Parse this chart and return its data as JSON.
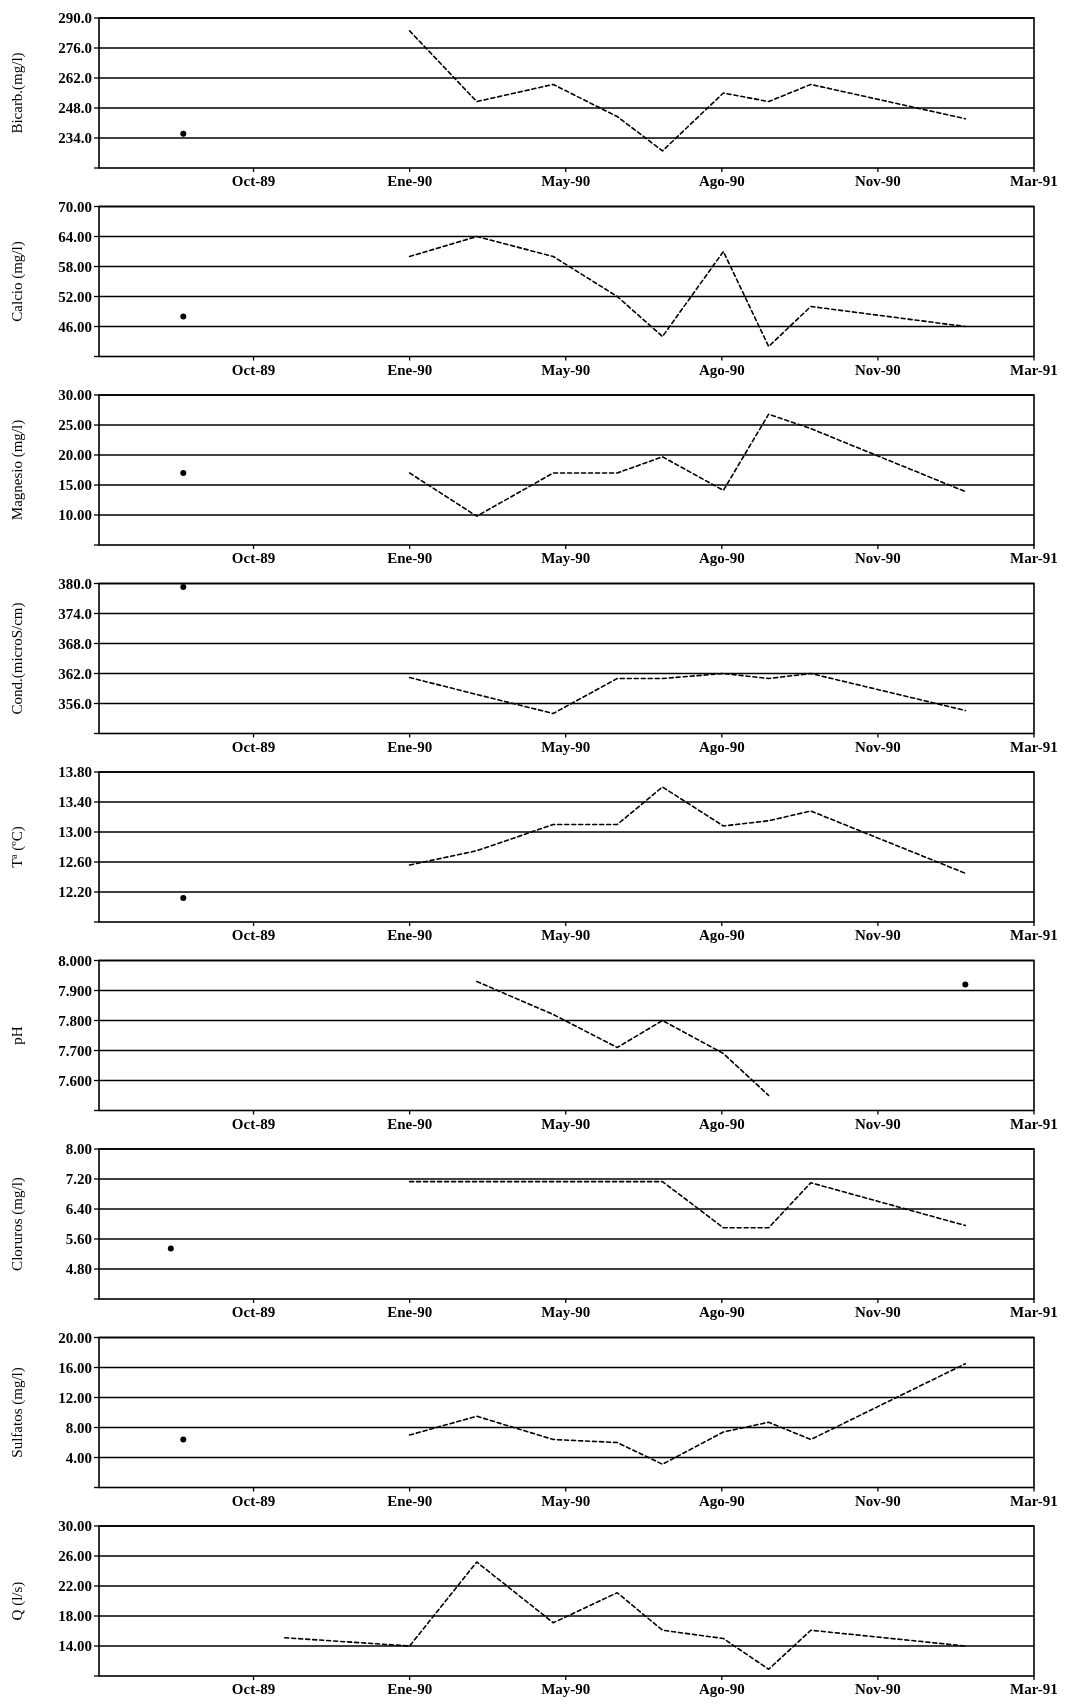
{
  "chart_data": [
    {
      "type": "line",
      "ylabel": "Bicarb.(mg/l)",
      "xlim": [
        "1989-07-13",
        "1991-03-04"
      ],
      "xticks": [
        {
          "value": "1989-10-20",
          "label": "Oct-89"
        },
        {
          "value": "1990-01-28",
          "label": "Ene-90"
        },
        {
          "value": "1990-05-08",
          "label": "May-90"
        },
        {
          "value": "1990-08-16",
          "label": "Ago-90"
        },
        {
          "value": "1990-11-24",
          "label": "Nov-90"
        },
        {
          "value": "1991-03-04",
          "label": "Mar-91"
        }
      ],
      "ylim": [
        220,
        290
      ],
      "yticks": [
        {
          "value": 234,
          "label": "234.0"
        },
        {
          "value": 248,
          "label": "248.0"
        },
        {
          "value": 262,
          "label": "262.0"
        },
        {
          "value": 276,
          "label": "276.0"
        },
        {
          "value": 290,
          "label": "290.0"
        }
      ],
      "grid": "y",
      "line_style": "dashed",
      "series": [
        {
          "type": "scatter",
          "color": "#000000",
          "x": [
            "1989-09-05"
          ],
          "values": [
            236
          ]
        },
        {
          "color": "#000000",
          "x": [
            "1990-01-28",
            "1990-03-12",
            "1990-04-30",
            "1990-06-10",
            "1990-07-09",
            "1990-08-17",
            "1990-09-15",
            "1990-10-12",
            "1991-01-19"
          ],
          "values": [
            284,
            251,
            259,
            244,
            228,
            255,
            251,
            259,
            243
          ]
        }
      ]
    },
    {
      "type": "line",
      "ylabel": "Calcio (mg/l)",
      "xlim": [
        "1989-07-13",
        "1991-03-04"
      ],
      "xticks": [
        {
          "value": "1989-10-20",
          "label": "Oct-89"
        },
        {
          "value": "1990-01-28",
          "label": "Ene-90"
        },
        {
          "value": "1990-05-08",
          "label": "May-90"
        },
        {
          "value": "1990-08-16",
          "label": "Ago-90"
        },
        {
          "value": "1990-11-24",
          "label": "Nov-90"
        },
        {
          "value": "1991-03-04",
          "label": "Mar-91"
        }
      ],
      "ylim": [
        40,
        70
      ],
      "yticks": [
        {
          "value": 46,
          "label": "46.00"
        },
        {
          "value": 52,
          "label": "52.00"
        },
        {
          "value": 58,
          "label": "58.00"
        },
        {
          "value": 64,
          "label": "64.00"
        },
        {
          "value": 70,
          "label": "70.00"
        }
      ],
      "grid": "y",
      "line_style": "dashed",
      "series": [
        {
          "type": "scatter",
          "color": "#000000",
          "x": [
            "1989-09-05"
          ],
          "values": [
            48
          ]
        },
        {
          "color": "#000000",
          "x": [
            "1990-01-28",
            "1990-03-12",
            "1990-04-30",
            "1990-06-10",
            "1990-07-09",
            "1990-08-17",
            "1990-09-15",
            "1990-10-12",
            "1991-01-19"
          ],
          "values": [
            60,
            64,
            60,
            52,
            44,
            61,
            42,
            50,
            46
          ]
        }
      ]
    },
    {
      "type": "line",
      "ylabel": "Magnesio (mg/l)",
      "xlim": [
        "1989-07-13",
        "1991-03-04"
      ],
      "xticks": [
        {
          "value": "1989-10-20",
          "label": "Oct-89"
        },
        {
          "value": "1990-01-28",
          "label": "Ene-90"
        },
        {
          "value": "1990-05-08",
          "label": "May-90"
        },
        {
          "value": "1990-08-16",
          "label": "Ago-90"
        },
        {
          "value": "1990-11-24",
          "label": "Nov-90"
        },
        {
          "value": "1991-03-04",
          "label": "Mar-91"
        }
      ],
      "ylim": [
        5,
        30
      ],
      "yticks": [
        {
          "value": 10,
          "label": "10.00"
        },
        {
          "value": 15,
          "label": "15.00"
        },
        {
          "value": 20,
          "label": "20.00"
        },
        {
          "value": 25,
          "label": "25.00"
        },
        {
          "value": 30,
          "label": "30.00"
        }
      ],
      "grid": "y",
      "line_style": "dashed",
      "series": [
        {
          "type": "scatter",
          "color": "#000000",
          "x": [
            "1989-09-05"
          ],
          "values": [
            17
          ]
        },
        {
          "color": "#000000",
          "x": [
            "1990-01-28",
            "1990-03-12",
            "1990-04-30",
            "1990-06-10",
            "1990-07-09",
            "1990-08-17",
            "1990-09-15",
            "1990-10-12",
            "1991-01-19"
          ],
          "values": [
            17,
            9.8,
            17,
            17,
            19.7,
            14.1,
            26.8,
            24.4,
            13.9
          ]
        }
      ]
    },
    {
      "type": "line",
      "ylabel": "Cond.(microS/cm)",
      "xlim": [
        "1989-07-13",
        "1991-03-04"
      ],
      "xticks": [
        {
          "value": "1989-10-20",
          "label": "Oct-89"
        },
        {
          "value": "1990-01-28",
          "label": "Ene-90"
        },
        {
          "value": "1990-05-08",
          "label": "May-90"
        },
        {
          "value": "1990-08-16",
          "label": "Ago-90"
        },
        {
          "value": "1990-11-24",
          "label": "Nov-90"
        },
        {
          "value": "1991-03-04",
          "label": "Mar-91"
        }
      ],
      "ylim": [
        350,
        380
      ],
      "yticks": [
        {
          "value": 356,
          "label": "356.0"
        },
        {
          "value": 362,
          "label": "362.0"
        },
        {
          "value": 368,
          "label": "368.0"
        },
        {
          "value": 374,
          "label": "374.0"
        },
        {
          "value": 380,
          "label": "380.0"
        }
      ],
      "grid": "y",
      "line_style": "dashed",
      "series": [
        {
          "type": "scatter",
          "color": "#000000",
          "x": [
            "1989-09-05"
          ],
          "values": [
            379.3
          ]
        },
        {
          "color": "#000000",
          "x": [
            "1990-01-28",
            "1990-03-12",
            "1990-04-30",
            "1990-06-10",
            "1990-07-09",
            "1990-08-17",
            "1990-09-15",
            "1990-10-12",
            "1991-01-19"
          ],
          "values": [
            361.2,
            357.8,
            354,
            361,
            361,
            362,
            361,
            362,
            354.6
          ]
        }
      ]
    },
    {
      "type": "line",
      "ylabel": "Tª (ºC)",
      "xlim": [
        "1989-07-13",
        "1991-03-04"
      ],
      "xticks": [
        {
          "value": "1989-10-20",
          "label": "Oct-89"
        },
        {
          "value": "1990-01-28",
          "label": "Ene-90"
        },
        {
          "value": "1990-05-08",
          "label": "May-90"
        },
        {
          "value": "1990-08-16",
          "label": "Ago-90"
        },
        {
          "value": "1990-11-24",
          "label": "Nov-90"
        },
        {
          "value": "1991-03-04",
          "label": "Mar-91"
        }
      ],
      "ylim": [
        11.8,
        13.8
      ],
      "yticks": [
        {
          "value": 12.2,
          "label": "12.20"
        },
        {
          "value": 12.6,
          "label": "12.60"
        },
        {
          "value": 13,
          "label": "13.00"
        },
        {
          "value": 13.4,
          "label": "13.40"
        },
        {
          "value": 13.8,
          "label": "13.80"
        }
      ],
      "grid": "y",
      "line_style": "dashed",
      "series": [
        {
          "type": "scatter",
          "color": "#000000",
          "x": [
            "1989-09-05"
          ],
          "values": [
            12.12
          ]
        },
        {
          "color": "#000000",
          "x": [
            "1990-01-28",
            "1990-03-12",
            "1990-04-30",
            "1990-06-10",
            "1990-07-09",
            "1990-08-17",
            "1990-09-15",
            "1990-10-12",
            "1991-01-19"
          ],
          "values": [
            12.56,
            12.75,
            13.1,
            13.1,
            13.6,
            13.08,
            13.15,
            13.28,
            12.45
          ]
        }
      ]
    },
    {
      "type": "line",
      "ylabel": "pH",
      "xlim": [
        "1989-07-13",
        "1991-03-04"
      ],
      "xticks": [
        {
          "value": "1989-10-20",
          "label": "Oct-89"
        },
        {
          "value": "1990-01-28",
          "label": "Ene-90"
        },
        {
          "value": "1990-05-08",
          "label": "May-90"
        },
        {
          "value": "1990-08-16",
          "label": "Ago-90"
        },
        {
          "value": "1990-11-24",
          "label": "Nov-90"
        },
        {
          "value": "1991-03-04",
          "label": "Mar-91"
        }
      ],
      "ylim": [
        7.5,
        8
      ],
      "yticks": [
        {
          "value": 7.6,
          "label": "7.600"
        },
        {
          "value": 7.7,
          "label": "7.700"
        },
        {
          "value": 7.8,
          "label": "7.800"
        },
        {
          "value": 7.9,
          "label": "7.900"
        },
        {
          "value": 8,
          "label": "8.000"
        }
      ],
      "grid": "y",
      "line_style": "dashed",
      "series": [
        {
          "type": "scatter",
          "color": "#000000",
          "x": [
            "1991-01-19"
          ],
          "values": [
            7.92
          ]
        },
        {
          "color": "#000000",
          "x": [
            "1990-03-12",
            "1990-04-30",
            "1990-06-10",
            "1990-07-09",
            "1990-08-17",
            "1990-09-15"
          ],
          "values": [
            7.93,
            7.82,
            7.71,
            7.8,
            7.69,
            7.55
          ]
        }
      ]
    },
    {
      "type": "line",
      "ylabel": "Cloruros (mg/l)",
      "xlim": [
        "1989-07-13",
        "1991-03-04"
      ],
      "xticks": [
        {
          "value": "1989-10-20",
          "label": "Oct-89"
        },
        {
          "value": "1990-01-28",
          "label": "Ene-90"
        },
        {
          "value": "1990-05-08",
          "label": "May-90"
        },
        {
          "value": "1990-08-16",
          "label": "Ago-90"
        },
        {
          "value": "1990-11-24",
          "label": "Nov-90"
        },
        {
          "value": "1991-03-04",
          "label": "Mar-91"
        }
      ],
      "ylim": [
        4,
        8
      ],
      "yticks": [
        {
          "value": 4.8,
          "label": "4.80"
        },
        {
          "value": 5.6,
          "label": "5.60"
        },
        {
          "value": 6.4,
          "label": "6.40"
        },
        {
          "value": 7.2,
          "label": "7.20"
        },
        {
          "value": 8,
          "label": "8.00"
        }
      ],
      "grid": "y",
      "line_style": "dashed",
      "series": [
        {
          "type": "scatter",
          "color": "#000000",
          "x": [
            "1989-08-28"
          ],
          "values": [
            5.35
          ]
        },
        {
          "color": "#000000",
          "x": [
            "1990-01-28",
            "1990-03-12",
            "1990-04-30",
            "1990-06-10",
            "1990-07-09",
            "1990-08-17",
            "1990-09-15",
            "1990-10-12",
            "1991-01-19"
          ],
          "values": [
            7.13,
            7.13,
            7.13,
            7.13,
            7.13,
            5.9,
            5.9,
            7.1,
            5.96
          ]
        }
      ]
    },
    {
      "type": "line",
      "ylabel": "Sulfatos (mg/l)",
      "xlim": [
        "1989-07-13",
        "1991-03-04"
      ],
      "xticks": [
        {
          "value": "1989-10-20",
          "label": "Oct-89"
        },
        {
          "value": "1990-01-28",
          "label": "Ene-90"
        },
        {
          "value": "1990-05-08",
          "label": "May-90"
        },
        {
          "value": "1990-08-16",
          "label": "Ago-90"
        },
        {
          "value": "1990-11-24",
          "label": "Nov-90"
        },
        {
          "value": "1991-03-04",
          "label": "Mar-91"
        }
      ],
      "ylim": [
        0,
        20
      ],
      "yticks": [
        {
          "value": 4,
          "label": "4.00"
        },
        {
          "value": 8,
          "label": "8.00"
        },
        {
          "value": 12,
          "label": "12.00"
        },
        {
          "value": 16,
          "label": "16.00"
        },
        {
          "value": 20,
          "label": "20.00"
        }
      ],
      "grid": "y",
      "line_style": "dashed",
      "series": [
        {
          "type": "scatter",
          "color": "#000000",
          "x": [
            "1989-09-05"
          ],
          "values": [
            6.4
          ]
        },
        {
          "color": "#000000",
          "x": [
            "1990-01-28",
            "1990-03-12",
            "1990-04-30",
            "1990-06-10",
            "1990-07-09",
            "1990-08-17",
            "1990-09-15",
            "1990-10-12",
            "1991-01-19"
          ],
          "values": [
            7,
            9.5,
            6.4,
            6,
            3.1,
            7.4,
            8.7,
            6.4,
            16.5
          ]
        }
      ]
    },
    {
      "type": "line",
      "ylabel": "Q (l/s)",
      "xlim": [
        "1989-07-13",
        "1991-03-04"
      ],
      "xticks": [
        {
          "value": "1989-10-20",
          "label": "Oct-89"
        },
        {
          "value": "1990-01-28",
          "label": "Ene-90"
        },
        {
          "value": "1990-05-08",
          "label": "May-90"
        },
        {
          "value": "1990-08-16",
          "label": "Ago-90"
        },
        {
          "value": "1990-11-24",
          "label": "Nov-90"
        },
        {
          "value": "1991-03-04",
          "label": "Mar-91"
        }
      ],
      "ylim": [
        10,
        30
      ],
      "yticks": [
        {
          "value": 14,
          "label": "14.00"
        },
        {
          "value": 18,
          "label": "18.00"
        },
        {
          "value": 22,
          "label": "22.00"
        },
        {
          "value": 26,
          "label": "26.00"
        },
        {
          "value": 30,
          "label": "30.00"
        }
      ],
      "grid": "y",
      "line_style": "dashed",
      "series": [
        {
          "color": "#000000",
          "x": [
            "1989-11-09",
            "1990-01-28",
            "1990-03-12",
            "1990-04-30",
            "1990-06-10",
            "1990-07-09",
            "1990-08-17",
            "1990-09-15",
            "1990-10-12",
            "1991-01-19"
          ],
          "values": [
            15.1,
            14,
            25.2,
            17.1,
            21.1,
            16.1,
            15,
            10.9,
            16.1,
            14
          ]
        }
      ]
    }
  ]
}
